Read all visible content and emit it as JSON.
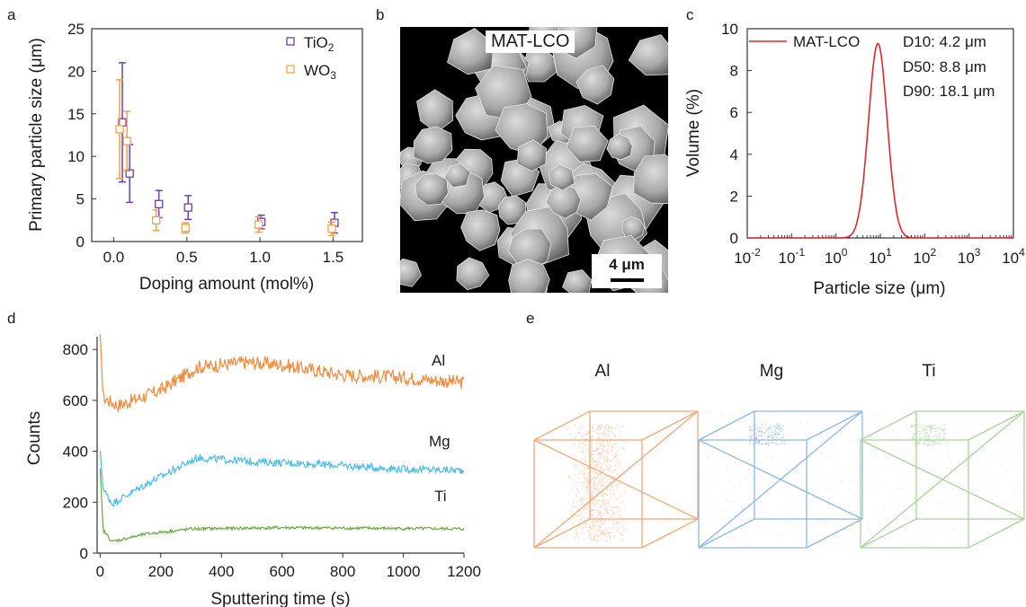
{
  "panels": {
    "a": "a",
    "b": "b",
    "c": "c",
    "d": "d",
    "e": "e"
  },
  "chart_data": [
    {
      "id": "a",
      "type": "scatter",
      "xlabel": "Doping amount (mol%)",
      "ylabel": "Primary particle size (μm)",
      "xlim": [
        -0.15,
        1.7
      ],
      "ylim": [
        0,
        25
      ],
      "xticks": [
        "0.0",
        "0.5",
        "1.0",
        "1.5"
      ],
      "yticks": [
        "0",
        "5",
        "10",
        "15",
        "20",
        "25"
      ],
      "legend_position": "top-right",
      "series": [
        {
          "name": "TiO",
          "sub": "2",
          "color": "#6a3fb5",
          "points": [
            {
              "x": 0.05,
              "y": 14.0,
              "err": 7.0
            },
            {
              "x": 0.1,
              "y": 8.0,
              "err": 3.4
            },
            {
              "x": 0.3,
              "y": 4.4,
              "err": 1.6
            },
            {
              "x": 0.5,
              "y": 4.0,
              "err": 1.4
            },
            {
              "x": 1.0,
              "y": 2.3,
              "err": 0.8
            },
            {
              "x": 1.5,
              "y": 2.2,
              "err": 1.2
            }
          ]
        },
        {
          "name": "WO",
          "sub": "3",
          "color": "#f5a040",
          "points": [
            {
              "x": 0.05,
              "y": 13.2,
              "err": 5.8
            },
            {
              "x": 0.1,
              "y": 11.8,
              "err": 3.5
            },
            {
              "x": 0.3,
              "y": 2.5,
              "err": 1.2
            },
            {
              "x": 0.5,
              "y": 1.6,
              "err": 0.6
            },
            {
              "x": 1.0,
              "y": 2.0,
              "err": 0.9
            },
            {
              "x": 1.5,
              "y": 1.5,
              "err": 0.8
            }
          ]
        }
      ]
    },
    {
      "id": "c",
      "type": "line",
      "xlabel": "Particle size (μm)",
      "ylabel": "Volume (%)",
      "xscale": "log",
      "xlim_exp": [
        -2,
        4
      ],
      "ylim": [
        0,
        10
      ],
      "xticks_exp": [
        "-2",
        "-1",
        "0",
        "1",
        "2",
        "3",
        "4"
      ],
      "yticks": [
        "0",
        "2",
        "4",
        "6",
        "8",
        "10"
      ],
      "legend_position": "top-left",
      "color": "#e2262c",
      "series_name": "MAT-LCO",
      "peak_um": 8.8,
      "peak_value": 9.3,
      "stats": [
        "D10: 4.2 μm",
        "D50: 8.8 μm",
        "D90: 18.1 μm"
      ]
    },
    {
      "id": "d",
      "type": "line",
      "xlabel": "Sputtering time (s)",
      "ylabel": "Counts",
      "xlim": [
        -10,
        1200
      ],
      "ylim": [
        0,
        850
      ],
      "xticks": [
        "0",
        "200",
        "400",
        "600",
        "800",
        "1000",
        "1200"
      ],
      "yticks": [
        "0",
        "200",
        "400",
        "600",
        "800"
      ],
      "series": [
        {
          "name": "Al",
          "color": "#f08a3c",
          "trend": [
            [
              0,
              860
            ],
            [
              10,
              610
            ],
            [
              60,
              580
            ],
            [
              200,
              640
            ],
            [
              320,
              730
            ],
            [
              480,
              750
            ],
            [
              600,
              740
            ],
            [
              800,
              700
            ],
            [
              1000,
              690
            ],
            [
              1200,
              670
            ]
          ],
          "noise": 55
        },
        {
          "name": "Mg",
          "color": "#4bbbe8",
          "trend": [
            [
              0,
              400
            ],
            [
              10,
              250
            ],
            [
              40,
              195
            ],
            [
              150,
              270
            ],
            [
              320,
              375
            ],
            [
              500,
              360
            ],
            [
              700,
              350
            ],
            [
              1000,
              330
            ],
            [
              1200,
              325
            ]
          ],
          "noise": 30
        },
        {
          "name": "Ti",
          "color": "#6aa843",
          "trend": [
            [
              0,
              330
            ],
            [
              10,
              90
            ],
            [
              40,
              45
            ],
            [
              150,
              75
            ],
            [
              300,
              95
            ],
            [
              600,
              100
            ],
            [
              1200,
              95
            ]
          ],
          "noise": 12
        }
      ]
    }
  ],
  "sem": {
    "label": "MAT-LCO",
    "scalebar": "4 μm"
  },
  "apt": [
    {
      "label": "Al",
      "color": "#f0a878"
    },
    {
      "label": "Mg",
      "color": "#8cb8e0"
    },
    {
      "label": "Ti",
      "color": "#a8d49a"
    }
  ]
}
